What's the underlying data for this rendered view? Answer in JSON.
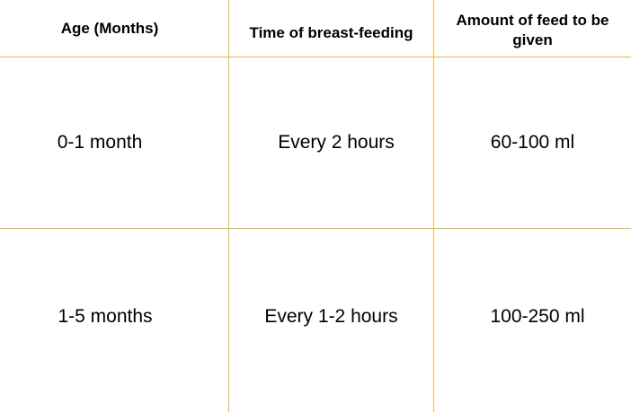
{
  "colors": {
    "grid_line": "#e6b84c",
    "text": "#000000",
    "background": "#ffffff"
  },
  "table": {
    "headers": [
      "Age (Months)",
      "Time of breast-feeding",
      "Amount of feed to be given"
    ],
    "rows": [
      [
        "0-1 month",
        "Every 2 hours",
        "60-100 ml"
      ],
      [
        "1-5 months",
        "Every 1-2 hours",
        "100-250 ml"
      ]
    ]
  }
}
